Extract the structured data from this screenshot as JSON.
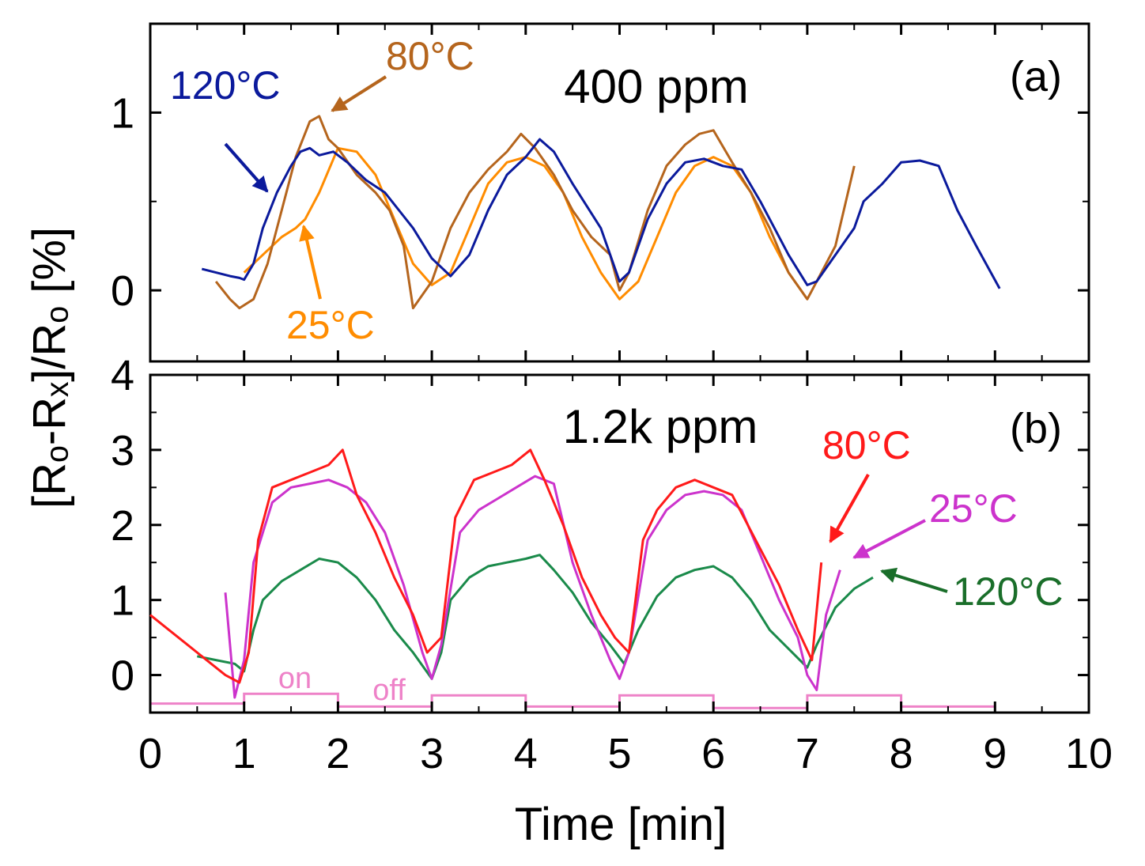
{
  "chart_data": [
    {
      "type": "line",
      "panel_tag": "(a)",
      "title": "400 ppm",
      "xlabel": "Time [min]",
      "ylabel": "[Rₒ-Rₓ]/Rₒ [%]",
      "xlim": [
        0,
        10
      ],
      "ylim": [
        -0.4,
        1.5
      ],
      "yticks": [
        0,
        1
      ],
      "ytick_labels": [
        "0",
        "1"
      ],
      "grid": false,
      "series": [
        {
          "name": "120°C",
          "color": "#0b1a9c",
          "x": [
            0.55,
            0.7,
            0.85,
            0.95,
            1.0,
            1.1,
            1.2,
            1.35,
            1.5,
            1.6,
            1.7,
            1.8,
            1.95,
            2.1,
            2.3,
            2.5,
            2.8,
            3.0,
            3.2,
            3.4,
            3.6,
            3.8,
            4.0,
            4.15,
            4.3,
            4.5,
            4.8,
            5.0,
            5.1,
            5.3,
            5.5,
            5.7,
            5.9,
            6.1,
            6.3,
            6.5,
            6.8,
            7.0,
            7.1,
            7.3,
            7.5,
            7.6,
            7.8,
            8.0,
            8.2,
            8.4,
            8.6,
            8.8,
            9.05
          ],
          "values": [
            0.12,
            0.1,
            0.08,
            0.07,
            0.06,
            0.15,
            0.35,
            0.55,
            0.7,
            0.78,
            0.8,
            0.76,
            0.78,
            0.72,
            0.62,
            0.55,
            0.35,
            0.18,
            0.08,
            0.2,
            0.45,
            0.65,
            0.75,
            0.85,
            0.78,
            0.6,
            0.35,
            0.05,
            0.1,
            0.4,
            0.6,
            0.72,
            0.74,
            0.7,
            0.68,
            0.5,
            0.2,
            0.03,
            0.05,
            0.2,
            0.35,
            0.5,
            0.6,
            0.72,
            0.73,
            0.7,
            0.45,
            0.25,
            0.01
          ]
        },
        {
          "name": "80°C",
          "color": "#b5651d",
          "x": [
            0.7,
            0.85,
            0.95,
            1.1,
            1.25,
            1.4,
            1.55,
            1.7,
            1.8,
            1.9,
            2.0,
            2.2,
            2.4,
            2.55,
            2.7,
            2.8,
            3.0,
            3.2,
            3.4,
            3.6,
            3.8,
            3.95,
            4.1,
            4.3,
            4.5,
            4.7,
            4.9,
            5.0,
            5.1,
            5.3,
            5.5,
            5.7,
            5.85,
            6.0,
            6.2,
            6.4,
            6.6,
            6.8,
            7.0,
            7.1,
            7.3,
            7.5
          ],
          "values": [
            0.05,
            -0.05,
            -0.1,
            -0.05,
            0.15,
            0.45,
            0.75,
            0.95,
            0.98,
            0.85,
            0.8,
            0.65,
            0.55,
            0.45,
            0.25,
            -0.1,
            0.05,
            0.35,
            0.55,
            0.68,
            0.78,
            0.88,
            0.8,
            0.65,
            0.45,
            0.3,
            0.2,
            0.0,
            0.1,
            0.45,
            0.7,
            0.82,
            0.88,
            0.9,
            0.72,
            0.55,
            0.35,
            0.1,
            -0.05,
            0.05,
            0.25,
            0.7
          ]
        },
        {
          "name": "25°C",
          "color": "#ff8c00",
          "x": [
            1.0,
            1.2,
            1.4,
            1.55,
            1.65,
            1.8,
            2.0,
            2.2,
            2.4,
            2.6,
            2.8,
            3.0,
            3.2,
            3.4,
            3.6,
            3.8,
            4.0,
            4.2,
            4.4,
            4.6,
            4.8,
            5.0,
            5.2,
            5.4,
            5.6,
            5.8,
            6.0,
            6.2,
            6.4,
            6.6,
            6.8,
            7.0
          ],
          "values": [
            0.1,
            0.2,
            0.3,
            0.35,
            0.4,
            0.55,
            0.8,
            0.78,
            0.65,
            0.4,
            0.15,
            0.03,
            0.1,
            0.35,
            0.6,
            0.72,
            0.75,
            0.7,
            0.55,
            0.3,
            0.1,
            -0.05,
            0.05,
            0.3,
            0.55,
            0.7,
            0.75,
            0.7,
            0.55,
            0.3,
            0.1,
            -0.05
          ]
        }
      ],
      "annotations": [
        {
          "text": "120°C",
          "color": "#0b1a9c"
        },
        {
          "text": "80°C",
          "color": "#b5651d"
        },
        {
          "text": "25°C",
          "color": "#ff8c00"
        }
      ]
    },
    {
      "type": "line",
      "panel_tag": "(b)",
      "title": "1.2k ppm",
      "xlabel": "Time [min]",
      "xlim": [
        0,
        10
      ],
      "ylim": [
        -0.5,
        4
      ],
      "xticks": [
        0,
        1,
        2,
        3,
        4,
        5,
        6,
        7,
        8,
        9,
        10
      ],
      "xtick_labels": [
        "0",
        "1",
        "2",
        "3",
        "4",
        "5",
        "6",
        "7",
        "8",
        "9",
        "10"
      ],
      "yticks": [
        0,
        1,
        2,
        3,
        4
      ],
      "ytick_labels": [
        "0",
        "1",
        "2",
        "3",
        "4"
      ],
      "grid": false,
      "series": [
        {
          "name": "80°C",
          "color": "#ff1a1a",
          "x": [
            0.0,
            0.2,
            0.4,
            0.6,
            0.8,
            0.95,
            1.05,
            1.15,
            1.3,
            1.5,
            1.7,
            1.9,
            2.05,
            2.2,
            2.4,
            2.6,
            2.8,
            2.95,
            3.1,
            3.25,
            3.45,
            3.65,
            3.85,
            4.05,
            4.2,
            4.4,
            4.6,
            4.8,
            4.95,
            5.1,
            5.25,
            5.4,
            5.6,
            5.8,
            6.0,
            6.2,
            6.45,
            6.7,
            6.9,
            7.05,
            7.15
          ],
          "values": [
            0.8,
            0.6,
            0.4,
            0.2,
            0.0,
            -0.1,
            0.3,
            1.8,
            2.5,
            2.6,
            2.7,
            2.8,
            3.0,
            2.4,
            1.9,
            1.3,
            0.8,
            0.3,
            0.5,
            2.1,
            2.6,
            2.7,
            2.8,
            3.0,
            2.6,
            2.0,
            1.3,
            0.8,
            0.5,
            0.3,
            1.8,
            2.2,
            2.5,
            2.6,
            2.5,
            2.4,
            1.8,
            1.2,
            0.6,
            0.2,
            1.5
          ]
        },
        {
          "name": "25°C",
          "color": "#cc33cc",
          "x": [
            0.8,
            0.9,
            1.0,
            1.1,
            1.3,
            1.5,
            1.7,
            1.9,
            2.1,
            2.3,
            2.5,
            2.7,
            2.9,
            3.0,
            3.1,
            3.3,
            3.5,
            3.7,
            3.9,
            4.1,
            4.3,
            4.5,
            4.7,
            4.9,
            5.0,
            5.1,
            5.3,
            5.5,
            5.7,
            5.9,
            6.1,
            6.3,
            6.5,
            6.7,
            6.9,
            7.0,
            7.1,
            7.2,
            7.35
          ],
          "values": [
            1.1,
            -0.3,
            0.2,
            1.5,
            2.3,
            2.5,
            2.55,
            2.6,
            2.5,
            2.3,
            1.9,
            1.2,
            0.3,
            -0.05,
            0.4,
            1.9,
            2.2,
            2.35,
            2.5,
            2.65,
            2.55,
            1.5,
            0.8,
            0.2,
            -0.05,
            0.3,
            1.8,
            2.2,
            2.4,
            2.45,
            2.4,
            2.2,
            1.6,
            1.0,
            0.5,
            0.0,
            -0.2,
            0.8,
            1.4
          ]
        },
        {
          "name": "120°C",
          "color": "#1a8a4a",
          "x": [
            0.5,
            0.7,
            0.9,
            1.0,
            1.1,
            1.2,
            1.4,
            1.6,
            1.8,
            2.0,
            2.2,
            2.4,
            2.6,
            2.8,
            3.0,
            3.1,
            3.2,
            3.4,
            3.6,
            3.8,
            4.0,
            4.15,
            4.3,
            4.5,
            4.7,
            4.9,
            5.05,
            5.2,
            5.4,
            5.6,
            5.8,
            6.0,
            6.2,
            6.4,
            6.6,
            6.8,
            7.0,
            7.1,
            7.3,
            7.5,
            7.7
          ],
          "values": [
            0.25,
            0.2,
            0.15,
            0.05,
            0.6,
            1.0,
            1.25,
            1.4,
            1.55,
            1.5,
            1.3,
            1.0,
            0.6,
            0.3,
            -0.05,
            0.3,
            1.0,
            1.3,
            1.45,
            1.5,
            1.55,
            1.6,
            1.4,
            1.1,
            0.7,
            0.4,
            0.15,
            0.6,
            1.05,
            1.3,
            1.4,
            1.45,
            1.3,
            1.0,
            0.6,
            0.35,
            0.1,
            0.4,
            0.9,
            1.15,
            1.3
          ]
        }
      ],
      "gas_signal": {
        "name": "on/off",
        "color": "#ee82c8",
        "x": [
          0,
          1,
          1,
          2,
          2,
          3,
          3,
          4,
          4,
          5,
          5,
          6,
          6,
          7,
          7,
          8,
          8,
          9
        ],
        "values": [
          -0.38,
          -0.38,
          -0.25,
          -0.25,
          -0.42,
          -0.42,
          -0.27,
          -0.27,
          -0.42,
          -0.42,
          -0.27,
          -0.27,
          -0.44,
          -0.44,
          -0.27,
          -0.27,
          -0.42,
          -0.42
        ]
      },
      "labels": {
        "on": "on",
        "off": "off"
      },
      "annotations": [
        {
          "text": "80°C",
          "color": "#ff1a1a"
        },
        {
          "text": "25°C",
          "color": "#cc33cc"
        },
        {
          "text": "120°C",
          "color": "#1a8a4a"
        }
      ]
    }
  ]
}
